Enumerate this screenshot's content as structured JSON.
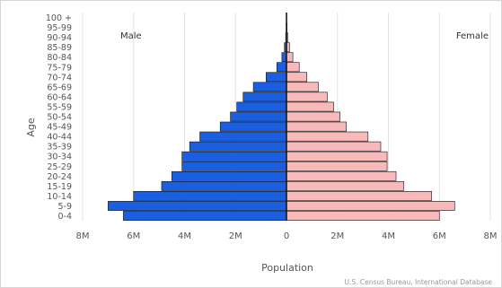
{
  "chart_data": {
    "type": "bar",
    "orientation": "horizontal",
    "layout": "population-pyramid",
    "categories": [
      "100 +",
      "95-99",
      "90-94",
      "85-89",
      "80-84",
      "75-79",
      "70-74",
      "65-69",
      "60-64",
      "55-59",
      "50-54",
      "45-49",
      "40-44",
      "35-39",
      "30-34",
      "25-29",
      "20-24",
      "15-19",
      "10-14",
      "5-9",
      "0-4"
    ],
    "series": [
      {
        "name": "Male",
        "color": "#1a5fe0",
        "values": [
          0,
          0.01,
          0.03,
          0.08,
          0.18,
          0.38,
          0.8,
          1.3,
          1.7,
          1.95,
          2.2,
          2.6,
          3.4,
          3.8,
          4.1,
          4.1,
          4.5,
          4.9,
          6.0,
          7.0,
          6.4
        ]
      },
      {
        "name": "Female",
        "color": "#f7b9b9",
        "values": [
          0.01,
          0.02,
          0.05,
          0.12,
          0.25,
          0.5,
          0.8,
          1.25,
          1.6,
          1.85,
          2.1,
          2.35,
          3.2,
          3.7,
          3.95,
          3.95,
          4.3,
          4.6,
          5.7,
          6.6,
          6.0
        ]
      }
    ],
    "xlabel": "Population",
    "ylabel": "Age",
    "xlim": [
      -8,
      8
    ],
    "x_unit": "millions",
    "x_ticks": [
      {
        "value": -8,
        "label": "8M"
      },
      {
        "value": -6,
        "label": "6M"
      },
      {
        "value": -4,
        "label": "4M"
      },
      {
        "value": -2,
        "label": "2M"
      },
      {
        "value": 0,
        "label": "0"
      },
      {
        "value": 2,
        "label": "2M"
      },
      {
        "value": 4,
        "label": "4M"
      },
      {
        "value": 6,
        "label": "6M"
      },
      {
        "value": 8,
        "label": "8M"
      }
    ],
    "left_label": "Male",
    "right_label": "Female",
    "grid": "vertical",
    "source_text": "U.S. Census Bureau, International Database"
  }
}
